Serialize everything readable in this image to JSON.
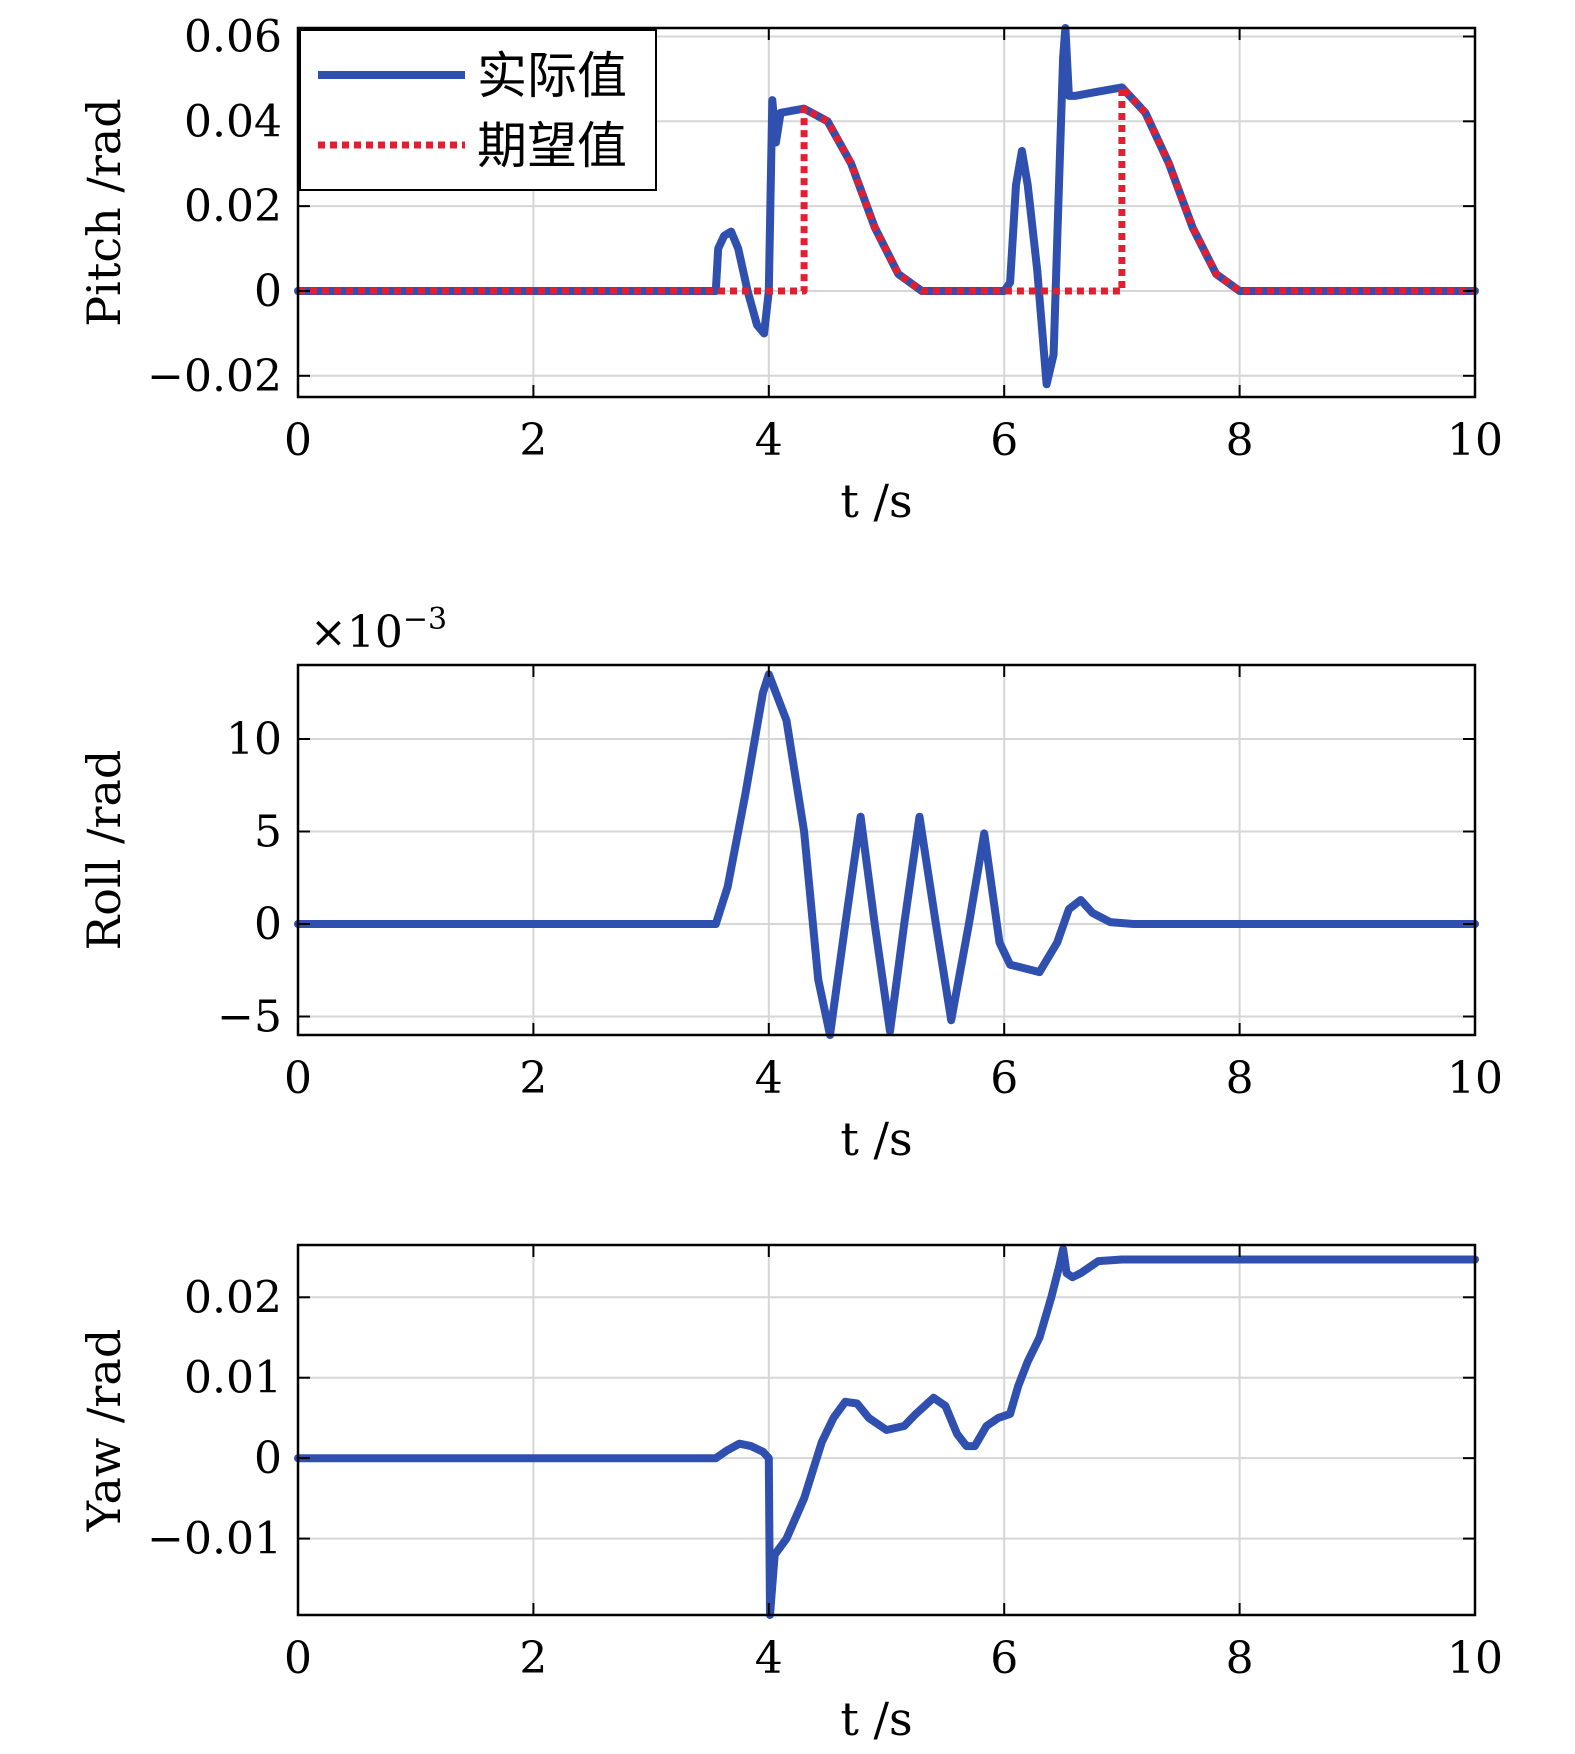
{
  "chart_data": [
    {
      "type": "line",
      "title": "",
      "xlabel": "t /s",
      "ylabel": "Pitch /rad",
      "xlim": [
        0,
        10
      ],
      "ylim": [
        -0.025,
        0.062
      ],
      "xticks": [
        0,
        2,
        4,
        6,
        8,
        10
      ],
      "xtick_labels": [
        "0",
        "2",
        "4",
        "6",
        "8",
        "10"
      ],
      "yticks": [
        -0.02,
        0,
        0.02,
        0.04,
        0.06
      ],
      "ytick_labels": [
        "−0.02",
        "0",
        "0.02",
        "0.04",
        "0.06"
      ],
      "grid": true,
      "legend": "top-left",
      "series": [
        {
          "name": "实际值",
          "color": "#3050b0",
          "style": "solid",
          "x": [
            0,
            3.55,
            3.57,
            3.62,
            3.68,
            3.74,
            3.82,
            3.9,
            3.96,
            4.0,
            4.03,
            4.06,
            4.1,
            4.3,
            4.5,
            4.7,
            4.9,
            5.1,
            5.3,
            6.0,
            6.05,
            6.1,
            6.15,
            6.2,
            6.28,
            6.36,
            6.42,
            6.46,
            6.5,
            6.52,
            6.55,
            6.6,
            6.8,
            7.0,
            7.2,
            7.4,
            7.6,
            7.8,
            8.0,
            10.0
          ],
          "y": [
            0,
            0,
            0.01,
            0.013,
            0.014,
            0.01,
            0.0,
            -0.008,
            -0.01,
            0.0,
            0.045,
            0.035,
            0.042,
            0.043,
            0.04,
            0.03,
            0.015,
            0.004,
            0,
            0,
            0.002,
            0.025,
            0.033,
            0.025,
            0.005,
            -0.022,
            -0.015,
            0.02,
            0.055,
            0.062,
            0.046,
            0.046,
            0.047,
            0.048,
            0.042,
            0.03,
            0.015,
            0.004,
            0,
            0
          ]
        },
        {
          "name": "期望值",
          "color": "#e02030",
          "style": "dotted",
          "x": [
            0,
            4.3,
            4.3,
            4.5,
            4.7,
            4.9,
            5.1,
            5.3,
            7.0,
            7.0,
            7.2,
            7.4,
            7.6,
            7.8,
            8.0,
            10.0
          ],
          "y": [
            0,
            0,
            0.043,
            0.04,
            0.03,
            0.015,
            0.004,
            0,
            0,
            0.048,
            0.042,
            0.03,
            0.015,
            0.004,
            0,
            0
          ]
        }
      ]
    },
    {
      "type": "line",
      "title": "",
      "xlabel": "t /s",
      "ylabel": "Roll /rad",
      "exponent_label": "×10",
      "exponent_power": "−3",
      "xlim": [
        0,
        10
      ],
      "ylim": [
        -6,
        14
      ],
      "xticks": [
        0,
        2,
        4,
        6,
        8,
        10
      ],
      "xtick_labels": [
        "0",
        "2",
        "4",
        "6",
        "8",
        "10"
      ],
      "yticks": [
        -5,
        0,
        5,
        10
      ],
      "ytick_labels": [
        "−5",
        "0",
        "5",
        "10"
      ],
      "grid": true,
      "series": [
        {
          "color": "#3050b0",
          "style": "solid",
          "x": [
            0,
            3.55,
            3.65,
            3.8,
            3.95,
            4.0,
            4.15,
            4.3,
            4.42,
            4.52,
            4.65,
            4.78,
            4.9,
            5.03,
            5.15,
            5.28,
            5.42,
            5.55,
            5.7,
            5.83,
            5.96,
            6.05,
            6.3,
            6.45,
            6.55,
            6.65,
            6.75,
            6.9,
            7.1,
            7.5,
            10.0
          ],
          "y": [
            0,
            0,
            2.0,
            7.0,
            12.5,
            13.5,
            11.0,
            5.0,
            -3.0,
            -6.0,
            0.0,
            5.8,
            0.0,
            -5.8,
            0.0,
            5.8,
            0.0,
            -5.2,
            0.0,
            4.9,
            -1.0,
            -2.2,
            -2.6,
            -1.0,
            0.8,
            1.3,
            0.6,
            0.1,
            0,
            0,
            0
          ]
        }
      ]
    },
    {
      "type": "line",
      "title": "",
      "xlabel": "t /s",
      "ylabel": "Yaw /rad",
      "xlim": [
        0,
        10
      ],
      "ylim": [
        -0.0195,
        0.0265
      ],
      "xticks": [
        0,
        2,
        4,
        6,
        8,
        10
      ],
      "xtick_labels": [
        "0",
        "2",
        "4",
        "6",
        "8",
        "10"
      ],
      "yticks": [
        -0.01,
        0,
        0.01,
        0.02
      ],
      "ytick_labels": [
        "−0.01",
        "0",
        "0.01",
        "0.02"
      ],
      "grid": true,
      "series": [
        {
          "color": "#3050b0",
          "style": "solid",
          "x": [
            0,
            3.55,
            3.65,
            3.75,
            3.85,
            3.95,
            4.0,
            4.01,
            4.05,
            4.15,
            4.3,
            4.45,
            4.55,
            4.65,
            4.75,
            4.85,
            5.0,
            5.15,
            5.25,
            5.4,
            5.5,
            5.6,
            5.68,
            5.75,
            5.85,
            5.95,
            6.05,
            6.12,
            6.2,
            6.3,
            6.4,
            6.47,
            6.5,
            6.53,
            6.58,
            6.65,
            6.8,
            7.0,
            10.0
          ],
          "y": [
            0,
            0,
            0.001,
            0.0018,
            0.0015,
            0.0008,
            0.0,
            -0.0195,
            -0.012,
            -0.01,
            -0.005,
            0.002,
            0.005,
            0.007,
            0.0068,
            0.005,
            0.0035,
            0.004,
            0.0055,
            0.0075,
            0.0065,
            0.003,
            0.0015,
            0.0015,
            0.004,
            0.005,
            0.0055,
            0.009,
            0.012,
            0.015,
            0.02,
            0.024,
            0.026,
            0.023,
            0.0225,
            0.023,
            0.0245,
            0.0247,
            0.0247
          ]
        }
      ]
    }
  ]
}
